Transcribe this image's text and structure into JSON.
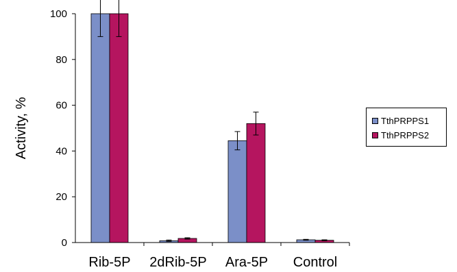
{
  "chart_data": {
    "type": "bar",
    "title": "",
    "xlabel": "",
    "ylabel": "Activity, %",
    "ylim": [
      0,
      100
    ],
    "yticks": [
      0,
      20,
      40,
      60,
      80,
      100
    ],
    "categories": [
      "Rib-5P",
      "2dRib-5P",
      "Ara-5P",
      "Control"
    ],
    "series": [
      {
        "name": "TthPRPPS1",
        "color": "#7b8fc8",
        "values": [
          100,
          0.8,
          44.5,
          1.2
        ],
        "errors": [
          10,
          0.3,
          4,
          0.2
        ]
      },
      {
        "name": "TthPRPPS2",
        "color": "#b5155f",
        "values": [
          100,
          1.8,
          52,
          1.0
        ],
        "errors": [
          10,
          0.3,
          5,
          0.2
        ]
      }
    ],
    "grid": false,
    "legend_position": "right"
  }
}
